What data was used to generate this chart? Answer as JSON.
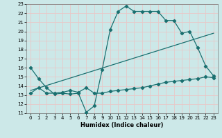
{
  "xlabel": "Humidex (Indice chaleur)",
  "bg_color": "#cce8e8",
  "grid_color": "#e8c8c8",
  "line_color": "#1a7070",
  "xlim": [
    -0.5,
    23.5
  ],
  "ylim": [
    11,
    23
  ],
  "xticks": [
    0,
    1,
    2,
    3,
    4,
    5,
    6,
    7,
    8,
    9,
    10,
    11,
    12,
    13,
    14,
    15,
    16,
    17,
    18,
    19,
    20,
    21,
    22,
    23
  ],
  "yticks": [
    11,
    12,
    13,
    14,
    15,
    16,
    17,
    18,
    19,
    20,
    21,
    22,
    23
  ],
  "series1_x": [
    0,
    1,
    2,
    3,
    4,
    5,
    6,
    7,
    8,
    9,
    10,
    11,
    12,
    13,
    14,
    15,
    16,
    17,
    18,
    19,
    20,
    21,
    22,
    23
  ],
  "series1_y": [
    16,
    14.8,
    13.8,
    13.1,
    13.2,
    13.1,
    13.2,
    11.1,
    11.8,
    15.8,
    20.2,
    22.2,
    22.8,
    22.2,
    22.2,
    22.2,
    22.2,
    21.2,
    21.2,
    19.8,
    20.0,
    18.2,
    16.2,
    15.1
  ],
  "series2_x": [
    0,
    1,
    2,
    3,
    4,
    5,
    6,
    7,
    8,
    9,
    10,
    11,
    12,
    13,
    14,
    15,
    16,
    17,
    18,
    19,
    20,
    21,
    22,
    23
  ],
  "series2_y": [
    13.2,
    13.8,
    13.2,
    13.2,
    13.3,
    13.5,
    13.3,
    13.8,
    13.2,
    13.2,
    13.4,
    13.5,
    13.6,
    13.7,
    13.8,
    14.0,
    14.2,
    14.4,
    14.5,
    14.6,
    14.7,
    14.8,
    15.0,
    14.9
  ],
  "series3_x": [
    0,
    23
  ],
  "series3_y": [
    13.5,
    19.8
  ]
}
